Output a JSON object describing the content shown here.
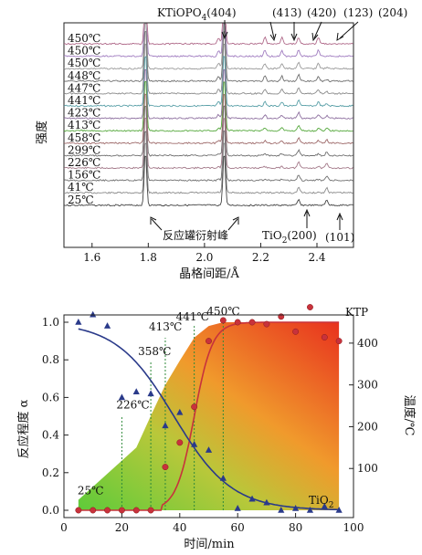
{
  "chart_data": [
    {
      "type": "line",
      "subtype": "stacked-diffraction-patterns",
      "xlabel": "晶格间距/Å",
      "ylabel": "强度",
      "xlim": [
        1.5,
        2.53
      ],
      "x_ticks": [
        "1.6",
        "1.8",
        "2.0",
        "2.2",
        "2.4"
      ],
      "series": [
        {
          "name": "450℃",
          "color": "#b06a8a"
        },
        {
          "name": "450℃",
          "color": "#a07cc0"
        },
        {
          "name": "450℃",
          "color": "#9a9a9a"
        },
        {
          "name": "448℃",
          "color": "#6f6f6f"
        },
        {
          "name": "447℃",
          "color": "#8a8a8a"
        },
        {
          "name": "441℃",
          "color": "#5aa0a8"
        },
        {
          "name": "423℃",
          "color": "#8c6e9e"
        },
        {
          "name": "413℃",
          "color": "#55a83c"
        },
        {
          "name": "458℃",
          "color": "#9e6a6a"
        },
        {
          "name": "299℃",
          "color": "#6f6f6f"
        },
        {
          "name": "226℃",
          "color": "#a47a8a"
        },
        {
          "name": "156℃",
          "color": "#707070"
        },
        {
          "name": "41℃",
          "color": "#8a8a8a"
        },
        {
          "name": "25℃",
          "color": "#444444"
        }
      ],
      "peaks": {
        "vessel": [
          1.79,
          2.07
        ],
        "ktp": [
          2.05,
          2.215,
          2.275,
          2.335,
          2.405
        ],
        "tio2": [
          2.335,
          2.435
        ]
      },
      "annotations": {
        "ktp_label": "KTiOPO",
        "ktp_sub": "4",
        "ktp_404": "(404)",
        "ktp_413": "(413)",
        "ktp_420": "(420)",
        "ktp_123": "(123)",
        "ktp_204": "(204)",
        "vessel_label": "反应罐衍射峰",
        "tio2_label": "TiO",
        "tio2_sub": "2",
        "tio2_200": "(200)",
        "tio2_101": "(101)"
      }
    },
    {
      "type": "scatter",
      "subtype": "reaction-extent-vs-time",
      "xlabel": "时间/min",
      "ylabel": "反应程度 α",
      "ylabel_right": "温度/℃",
      "xlim": [
        0,
        100
      ],
      "ylim": [
        0,
        1.05
      ],
      "ylim_right": [
        0,
        450
      ],
      "x_ticks": [
        0,
        20,
        40,
        60,
        80,
        100
      ],
      "y_ticks": [
        0.0,
        0.2,
        0.4,
        0.6,
        0.8,
        1.0
      ],
      "y_ticks_right": [
        100,
        200,
        300,
        400
      ],
      "temperature_profile": {
        "x": [
          5,
          25,
          30,
          35,
          40,
          45,
          50,
          55,
          95
        ],
        "y": [
          25,
          150,
          226,
          300,
          358,
          413,
          441,
          450,
          450
        ]
      },
      "temperature_markers": [
        {
          "label": "25℃",
          "x": 5,
          "y": 25
        },
        {
          "label": "226℃",
          "x": 20,
          "y": 226
        },
        {
          "label": "358℃",
          "x": 30,
          "y": 358
        },
        {
          "label": "413℃",
          "x": 35,
          "y": 413
        },
        {
          "label": "441℃",
          "x": 45,
          "y": 441
        },
        {
          "label": "450℃",
          "x": 55,
          "y": 450
        }
      ],
      "series": [
        {
          "name": "KTP",
          "marker": "circle",
          "color": "#c8323c",
          "x": [
            5,
            10,
            15,
            20,
            25,
            30,
            35,
            40,
            45,
            50,
            55,
            60,
            65,
            70,
            75,
            80,
            85,
            90,
            95
          ],
          "y": [
            0.0,
            0.0,
            0.0,
            0.0,
            0.0,
            0.0,
            0.23,
            0.36,
            0.55,
            0.9,
            1.01,
            1.0,
            1.0,
            0.99,
            1.03,
            0.95,
            1.08,
            0.92,
            0.9
          ],
          "fit_color": "#c8323c"
        },
        {
          "name": "TiO",
          "name_sub": "2",
          "marker": "triangle",
          "color": "#2a3a8a",
          "x": [
            5,
            10,
            15,
            20,
            25,
            30,
            35,
            40,
            45,
            50,
            55,
            60,
            65,
            70,
            75,
            80,
            85,
            90,
            95
          ],
          "y": [
            1.0,
            1.04,
            0.98,
            0.6,
            0.63,
            0.62,
            0.45,
            0.52,
            0.35,
            0.32,
            0.17,
            0.01,
            0.06,
            0.04,
            0.0,
            0.01,
            0.0,
            0.02,
            0.0
          ],
          "fit_color": "#2a3a8a"
        }
      ]
    }
  ]
}
